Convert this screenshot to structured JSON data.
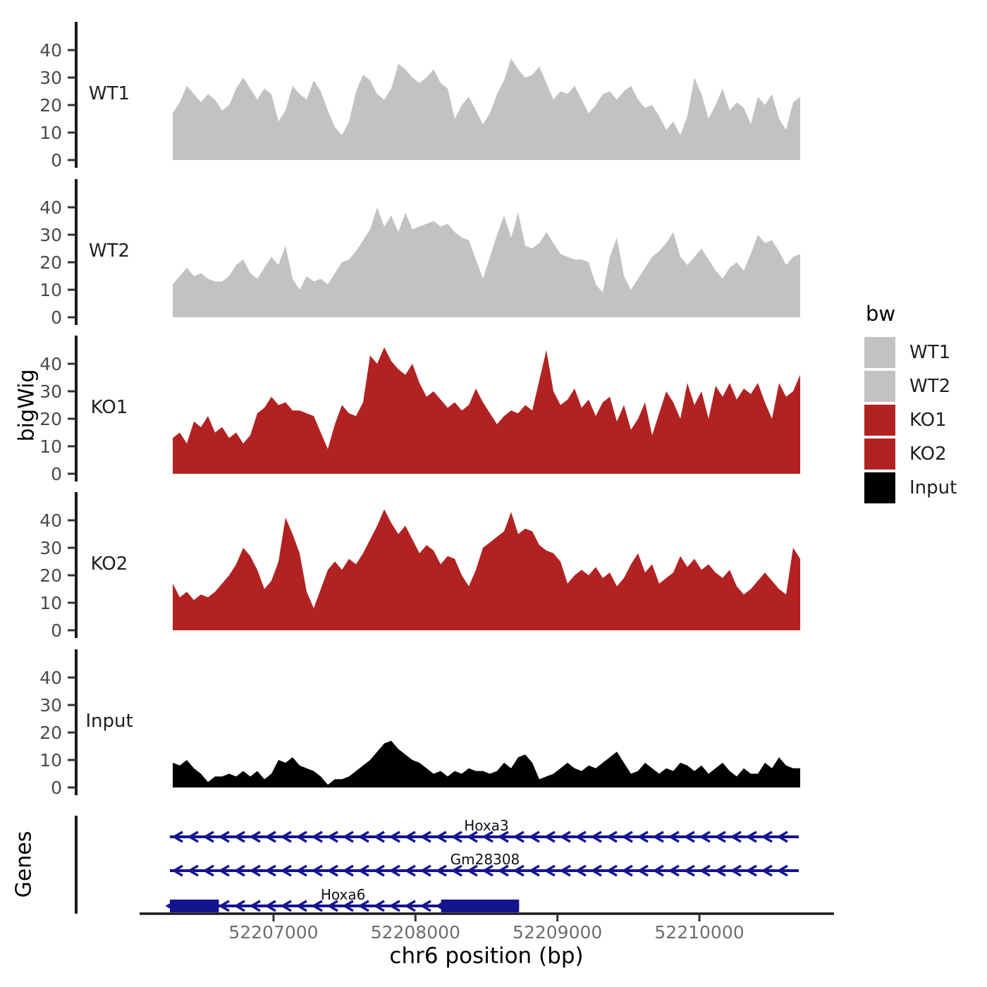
{
  "chart_data": {
    "type": "area",
    "title": "",
    "xlabel": "chr6 position (bp)",
    "ylabel": "bigWig",
    "x_range": [
      52206290,
      52210710
    ],
    "ylim": [
      0,
      47
    ],
    "y_ticks": [
      0,
      10,
      20,
      30,
      40
    ],
    "x_ticks": [
      {
        "bp": 52207000,
        "label": "52207000"
      },
      {
        "bp": 52208000,
        "label": "52208000"
      },
      {
        "bp": 52209000,
        "label": "52209000"
      },
      {
        "bp": 52210000,
        "label": "52210000"
      }
    ],
    "grid": "off",
    "legend": {
      "title": "bw",
      "position": "right",
      "entries": [
        {
          "label": "WT1",
          "color": "#c2c2c2"
        },
        {
          "label": "WT2",
          "color": "#c2c2c2"
        },
        {
          "label": "KO1",
          "color": "#b22222"
        },
        {
          "label": "KO2",
          "color": "#b22222"
        },
        {
          "label": "Input",
          "color": "#000000"
        }
      ]
    },
    "tracks": [
      {
        "name": "WT1",
        "color": "#c2c2c2",
        "values": [
          17,
          21,
          27,
          24,
          21,
          24,
          22,
          18,
          20,
          26,
          30,
          26,
          22,
          26,
          24,
          14,
          18,
          27,
          24,
          22,
          29,
          25,
          18,
          12,
          9,
          14,
          25,
          31,
          29,
          24,
          22,
          26,
          35,
          33,
          30,
          28,
          30,
          33,
          28,
          26,
          15,
          20,
          23,
          18,
          13,
          17,
          24,
          29,
          37,
          33,
          30,
          31,
          34,
          28,
          22,
          25,
          24,
          27,
          22,
          17,
          20,
          24,
          25,
          22,
          25,
          27,
          22,
          19,
          20,
          16,
          11,
          14,
          9,
          16,
          30,
          24,
          15,
          20,
          26,
          18,
          21,
          19,
          13,
          23,
          20,
          24,
          15,
          11,
          21,
          23
        ]
      },
      {
        "name": "WT2",
        "color": "#c2c2c2",
        "values": [
          12,
          15,
          18,
          15,
          16,
          14,
          13,
          13,
          15,
          19,
          21,
          16,
          14,
          18,
          22,
          19,
          26,
          14,
          10,
          15,
          13,
          14,
          12,
          16,
          20,
          21,
          24,
          28,
          32,
          40,
          33,
          37,
          31,
          38,
          32,
          33,
          34,
          35,
          33,
          34,
          31,
          29,
          28,
          21,
          14,
          22,
          30,
          37,
          29,
          38,
          26,
          25,
          27,
          31,
          27,
          23,
          22,
          21,
          21,
          20,
          12,
          9,
          22,
          29,
          15,
          10,
          14,
          18,
          22,
          24,
          27,
          31,
          22,
          19,
          22,
          25,
          21,
          17,
          14,
          18,
          20,
          17,
          23,
          30,
          27,
          28,
          24,
          19,
          22,
          23
        ]
      },
      {
        "name": "KO1",
        "color": "#b22222",
        "values": [
          13,
          15,
          11,
          19,
          17,
          21,
          15,
          17,
          13,
          15,
          11,
          14,
          22,
          24,
          28,
          25,
          26,
          23,
          23,
          22,
          21,
          15,
          9,
          18,
          25,
          22,
          21,
          26,
          43,
          40,
          46,
          41,
          38,
          36,
          40,
          33,
          28,
          30,
          27,
          24,
          26,
          23,
          25,
          31,
          26,
          22,
          18,
          21,
          23,
          22,
          25,
          23,
          34,
          45,
          30,
          25,
          27,
          31,
          24,
          27,
          21,
          26,
          28,
          19,
          25,
          16,
          20,
          26,
          14,
          22,
          30,
          26,
          20,
          33,
          25,
          30,
          20,
          32,
          28,
          33,
          27,
          31,
          29,
          33,
          26,
          20,
          33,
          28,
          30,
          36
        ]
      },
      {
        "name": "KO2",
        "color": "#b22222",
        "values": [
          17,
          12,
          14,
          11,
          13,
          12,
          14,
          17,
          20,
          24,
          30,
          27,
          22,
          15,
          18,
          25,
          41,
          35,
          28,
          14,
          8,
          15,
          22,
          25,
          22,
          26,
          24,
          28,
          33,
          38,
          44,
          39,
          35,
          38,
          33,
          28,
          31,
          29,
          24,
          27,
          26,
          20,
          16,
          22,
          30,
          32,
          34,
          36,
          43,
          35,
          37,
          36,
          31,
          29,
          28,
          25,
          17,
          20,
          22,
          20,
          23,
          19,
          21,
          16,
          19,
          24,
          28,
          21,
          24,
          17,
          19,
          21,
          27,
          23,
          26,
          22,
          24,
          21,
          19,
          22,
          16,
          13,
          15,
          18,
          21,
          18,
          15,
          13,
          30,
          26
        ]
      },
      {
        "name": "Input",
        "color": "#000000",
        "values": [
          9,
          8,
          10,
          7,
          5,
          2,
          4,
          4,
          5,
          4,
          6,
          4,
          6,
          3,
          5,
          10,
          9,
          11,
          8,
          7,
          6,
          4,
          1,
          3,
          3,
          4,
          6,
          8,
          10,
          13,
          16,
          17,
          14,
          12,
          10,
          9,
          7,
          5,
          6,
          4,
          6,
          5,
          7,
          6,
          6,
          5,
          6,
          9,
          7,
          11,
          12,
          9,
          3,
          4,
          5,
          7,
          9,
          7,
          6,
          8,
          7,
          9,
          11,
          13,
          9,
          5,
          6,
          9,
          7,
          5,
          7,
          6,
          9,
          8,
          6,
          8,
          5,
          7,
          9,
          6,
          4,
          7,
          5,
          5,
          9,
          7,
          11,
          8,
          7,
          7
        ]
      }
    ],
    "genes": {
      "panel_label": "Genes",
      "color": "#14148f",
      "items": [
        {
          "name": "Hoxa3",
          "strand": "-",
          "start_bp": 52206270,
          "end_bp": 52210700,
          "exons": [],
          "label_bp": 52208500
        },
        {
          "name": "Gm28308",
          "strand": "-",
          "start_bp": 52206270,
          "end_bp": 52210700,
          "exons": [],
          "label_bp": 52208490
        },
        {
          "name": "Hoxa6",
          "strand": "-",
          "start_bp": 52206270,
          "end_bp": 52208730,
          "exons": [
            [
              52206270,
              52206615
            ],
            [
              52208180,
              52208730
            ]
          ],
          "label_bp": 52207490
        }
      ]
    }
  }
}
